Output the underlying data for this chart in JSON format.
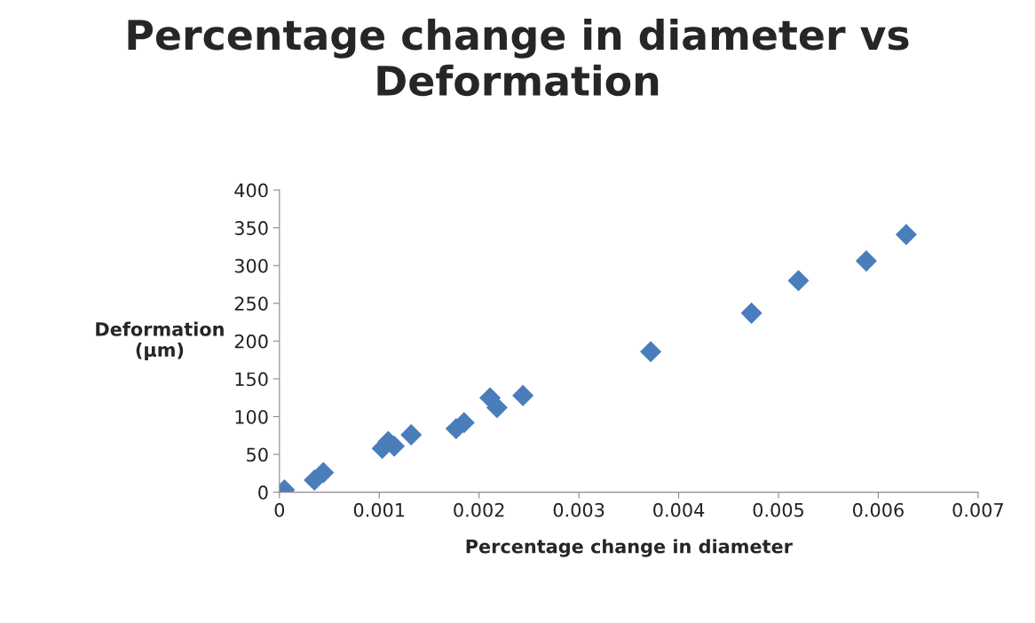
{
  "chart_data": {
    "type": "scatter",
    "title": "Percentage change in diameter vs Deformation",
    "xlabel": "Percentage change in diameter",
    "ylabel": "Deformation\n(µm)",
    "x": [
      5e-05,
      0.00035,
      0.00044,
      0.00103,
      0.00109,
      0.00115,
      0.00132,
      0.00177,
      0.00185,
      0.00211,
      0.00218,
      0.00244,
      0.00372,
      0.00473,
      0.0052,
      0.00588,
      0.00628
    ],
    "series": [
      {
        "color": "#4a7ebb",
        "values": [
          3,
          16,
          26,
          58,
          67,
          61,
          76,
          84,
          92,
          125,
          112,
          128,
          186,
          237,
          280,
          306,
          341
        ]
      }
    ],
    "xlim": [
      0,
      0.007
    ],
    "xticks": [
      0,
      0.001,
      0.002,
      0.003,
      0.004,
      0.005,
      0.006,
      0.007
    ],
    "ylim": [
      0,
      400
    ],
    "yticks": [
      0,
      50,
      100,
      150,
      200,
      250,
      300,
      350,
      400
    ],
    "marker": "diamond",
    "grid": false
  }
}
